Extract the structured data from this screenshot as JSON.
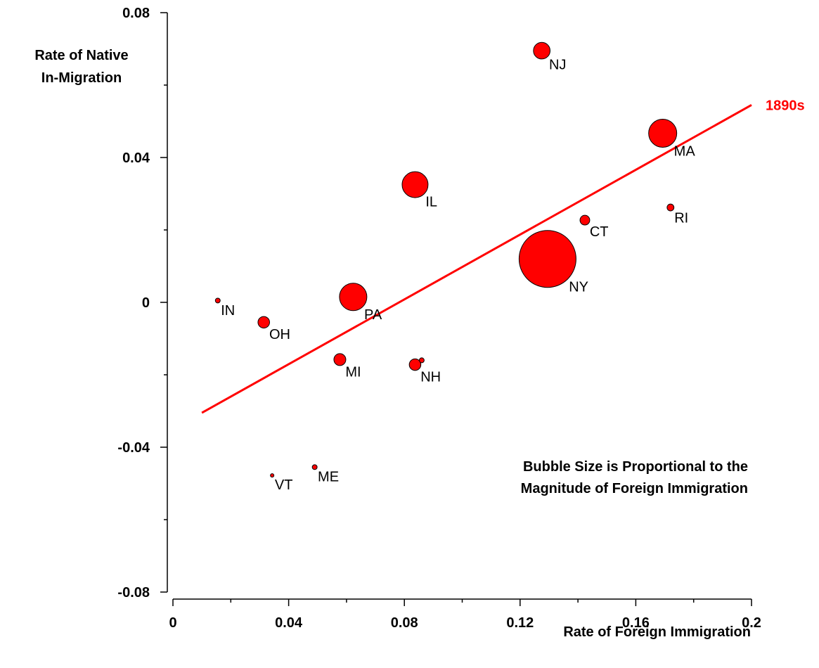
{
  "chart_data": {
    "type": "scatter",
    "xlabel": "Rate of Foreign Immigration",
    "ylabel_lines": [
      "Rate of Native",
      "In-Migration"
    ],
    "xlim": [
      0,
      0.2
    ],
    "ylim": [
      -0.08,
      0.08
    ],
    "x_ticks": [
      "0",
      "0.04",
      "0.08",
      "0.12",
      "0.16",
      "0.2"
    ],
    "y_ticks": [
      "0.08",
      "0.04",
      "0",
      "-0.04",
      "-0.08"
    ],
    "grid": false,
    "bubble_color": "#ff0000",
    "points": [
      {
        "label": "NJ",
        "x": 0.1275,
        "y": 0.0695,
        "size": 0.35
      },
      {
        "label": "MA",
        "x": 0.1693,
        "y": 0.0467,
        "size": 1.0
      },
      {
        "label": "IL",
        "x": 0.0837,
        "y": 0.0325,
        "size": 0.85
      },
      {
        "label": "RI",
        "x": 0.172,
        "y": 0.0262,
        "size": 0.06
      },
      {
        "label": "CT",
        "x": 0.1424,
        "y": 0.0227,
        "size": 0.12
      },
      {
        "label": "NY",
        "x": 0.1295,
        "y": 0.012,
        "size": 4.1
      },
      {
        "label": "PA",
        "x": 0.0623,
        "y": 0.0015,
        "size": 0.95
      },
      {
        "label": "IN",
        "x": 0.0155,
        "y": 0.0005,
        "size": 0.03
      },
      {
        "label": "OH",
        "x": 0.0314,
        "y": -0.0055,
        "size": 0.17
      },
      {
        "label": "MI",
        "x": 0.0577,
        "y": -0.0158,
        "size": 0.18
      },
      {
        "label": "NH",
        "x": 0.0837,
        "y": -0.0172,
        "size": 0.17
      },
      {
        "label": "",
        "x": 0.086,
        "y": -0.016,
        "size": 0.03
      },
      {
        "label": "ME",
        "x": 0.049,
        "y": -0.0455,
        "size": 0.03
      },
      {
        "label": "VT",
        "x": 0.0343,
        "y": -0.0478,
        "size": 0.01
      }
    ],
    "trendline": {
      "label": "1890s",
      "x": [
        0.01,
        0.2
      ],
      "y": [
        -0.0305,
        0.0545
      ],
      "color": "#ff0000"
    },
    "annotation_lines": [
      "Bubble Size is Proportional to the",
      "Magnitude of Foreign Immigration"
    ]
  }
}
